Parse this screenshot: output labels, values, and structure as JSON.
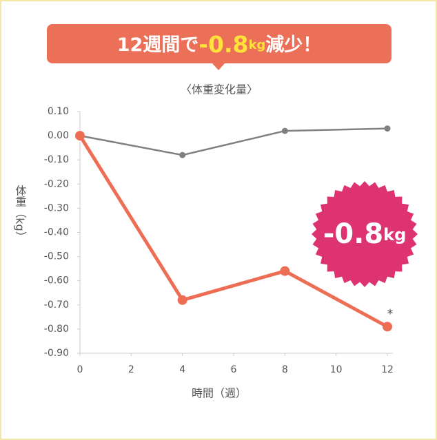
{
  "chart_data": {
    "type": "line",
    "banner": {
      "lead": "12週間で",
      "value": "-0.8",
      "unit": "kg",
      "tail": "減少！"
    },
    "title": "〈体重変化量〉",
    "xlabel": "時間（週）",
    "ylabel": "体重（kg）",
    "x": [
      0,
      4,
      8,
      12
    ],
    "series": [
      {
        "color": "#808080",
        "values": [
          0,
          -0.08,
          0.02,
          0.03
        ]
      },
      {
        "color": "#ee6e55",
        "values": [
          0,
          -0.68,
          -0.56,
          -0.79
        ]
      }
    ],
    "xlim": [
      0,
      12
    ],
    "xticks": [
      0,
      2,
      4,
      6,
      8,
      10,
      12
    ],
    "ylim": [
      -0.9,
      0.1
    ],
    "yticks": [
      {
        "value": 0.1,
        "label": "0.10"
      },
      {
        "value": 0,
        "label": "0.00"
      },
      {
        "value": -0.1,
        "label": "-0.10"
      },
      {
        "value": -0.2,
        "label": "-0.20"
      },
      {
        "value": -0.3,
        "label": "-0.30"
      },
      {
        "value": -0.4,
        "label": "-0.40"
      },
      {
        "value": -0.5,
        "label": "-0.50"
      },
      {
        "value": -0.6,
        "label": "-0.60"
      },
      {
        "value": -0.7,
        "label": "-0.70"
      },
      {
        "value": -0.8,
        "label": "-0.80"
      },
      {
        "value": -0.9,
        "label": "-0.90"
      }
    ],
    "annotation": "*",
    "badge": {
      "value": "-0.8",
      "unit": "kg",
      "color": "#dd3371"
    }
  }
}
